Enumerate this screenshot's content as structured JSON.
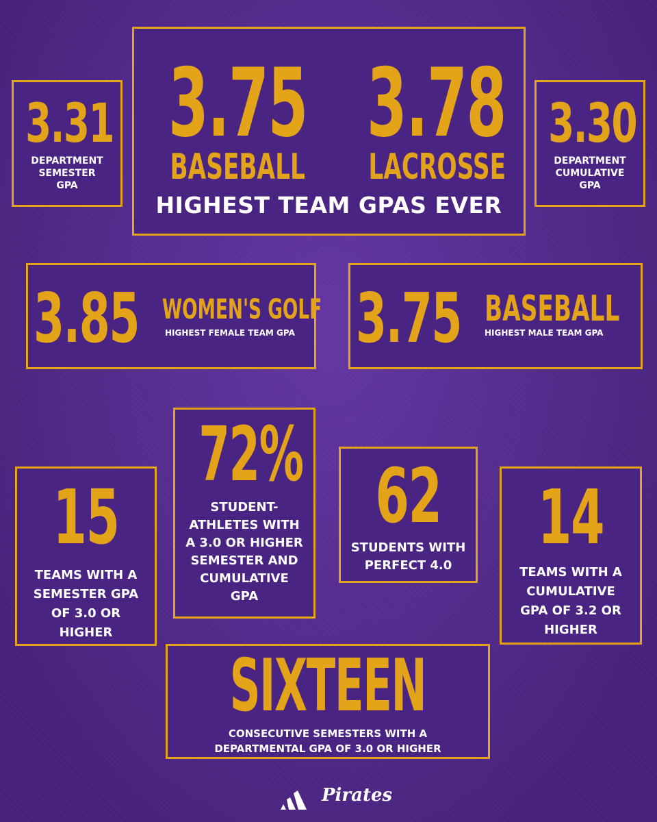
{
  "top": {
    "dept_semester": {
      "value": "3.31",
      "label_lines": [
        "DEPARTMENT",
        "SEMESTER",
        "GPA"
      ]
    },
    "main": {
      "left": {
        "value": "3.75",
        "sport": "BASEBALL"
      },
      "right": {
        "value": "3.78",
        "sport": "LACROSSE"
      },
      "caption": "HIGHEST TEAM GPAS EVER"
    },
    "dept_cumulative": {
      "value": "3.30",
      "label_lines": [
        "DEPARTMENT",
        "CUMULATIVE",
        "GPA"
      ]
    }
  },
  "middle": {
    "female": {
      "value": "3.85",
      "sport": "WOMEN'S GOLF",
      "sub": "HIGHEST FEMALE TEAM GPA"
    },
    "male": {
      "value": "3.75",
      "sport": "BASEBALL",
      "sub": "HIGHEST MALE TEAM GPA"
    }
  },
  "bottom": {
    "teams_semester": {
      "value": "15",
      "label_lines": [
        "TEAMS WITH A",
        "SEMESTER GPA",
        "OF 3.0 OR",
        "HIGHER"
      ]
    },
    "percent": {
      "value": "72%",
      "label_lines": [
        "STUDENT-",
        "ATHLETES WITH",
        "A 3.0 OR HIGHER",
        "SEMESTER AND",
        "CUMULATIVE",
        "GPA"
      ]
    },
    "perfect": {
      "value": "62",
      "label_lines": [
        "STUDENTS WITH",
        "PERFECT 4.0"
      ]
    },
    "teams_cumulative": {
      "value": "14",
      "label_lines": [
        "TEAMS WITH A",
        "CUMULATIVE",
        "GPA OF 3.2 OR",
        "HIGHER"
      ]
    },
    "consecutive": {
      "value": "SIXTEEN",
      "label_lines": [
        "CONSECUTIVE SEMESTERS WITH A",
        "DEPARTMENTAL GPA OF 3.0 OR HIGHER"
      ]
    }
  },
  "footer": {
    "brand_logo": "adidas-icon",
    "team_wordmark": "Pirates"
  },
  "colors": {
    "background": "#5a2e96",
    "gold": "#e3a419",
    "white": "#ffffff"
  }
}
